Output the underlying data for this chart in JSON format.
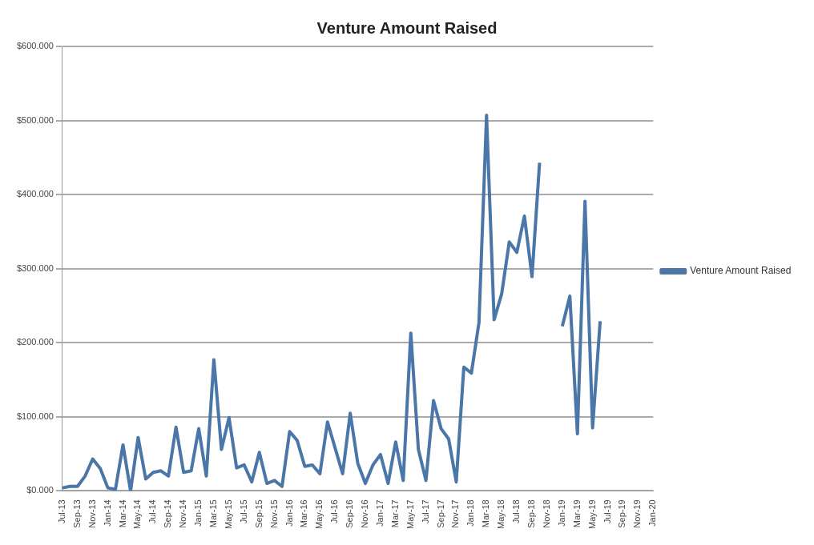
{
  "chart_data": {
    "type": "line",
    "title": "Venture Amount Raised",
    "categories": [
      "Jul-13",
      null,
      "Sep-13",
      null,
      "Nov-13",
      null,
      "Jan-14",
      null,
      "Mar-14",
      null,
      "May-14",
      null,
      "Jul-14",
      null,
      "Sep-14",
      null,
      "Nov-14",
      null,
      "Jan-15",
      null,
      "Mar-15",
      null,
      "May-15",
      null,
      "Jul-15",
      null,
      "Sep-15",
      null,
      "Nov-15",
      null,
      "Jan-16",
      null,
      "Mar-16",
      null,
      "May-16",
      null,
      "Jul-16",
      null,
      "Sep-16",
      null,
      "Nov-16",
      null,
      "Jan-17",
      null,
      "Mar-17",
      null,
      "May-17",
      null,
      "Jul-17",
      null,
      "Sep-17",
      null,
      "Nov-17",
      null,
      "Jan-18",
      null,
      "Mar-18",
      null,
      "May-18",
      null,
      "Jul-18",
      null,
      "Sep-18",
      null,
      "Nov-18",
      null,
      "Jan-19",
      null,
      "Mar-19",
      null,
      "May-19",
      null,
      "Jul-19",
      null,
      "Sep-19",
      null,
      "Nov-19",
      null,
      "Jan-20"
    ],
    "series": [
      {
        "name": "Venture Amount Raised",
        "color": "#4a76a8",
        "values": [
          4,
          6,
          6,
          20,
          43,
          30,
          4,
          2,
          62,
          0,
          72,
          16,
          25,
          27,
          20,
          86,
          25,
          27,
          84,
          20,
          177,
          56,
          99,
          31,
          35,
          12,
          52,
          10,
          14,
          6,
          80,
          68,
          33,
          35,
          23,
          93,
          58,
          23,
          105,
          37,
          10,
          35,
          49,
          10,
          66,
          14,
          213,
          56,
          14,
          122,
          84,
          70,
          12,
          167,
          159,
          227,
          507,
          231,
          266,
          336,
          322,
          371,
          289,
          443,
          null,
          null,
          222,
          263,
          77,
          391,
          85,
          229,
          null,
          null,
          null,
          null,
          null,
          null,
          null
        ]
      }
    ],
    "ylim": [
      0,
      600
    ],
    "yticks": [
      {
        "value": 0,
        "label": "$0.000"
      },
      {
        "value": 100,
        "label": "$100.000"
      },
      {
        "value": 200,
        "label": "$200.000"
      },
      {
        "value": 300,
        "label": "$300.000"
      },
      {
        "value": 400,
        "label": "$400.000"
      },
      {
        "value": 500,
        "label": "$500.000"
      },
      {
        "value": 600,
        "label": "$600.000"
      }
    ],
    "grid": "y",
    "legend": "right",
    "marker": "none",
    "line_style": "solid"
  }
}
